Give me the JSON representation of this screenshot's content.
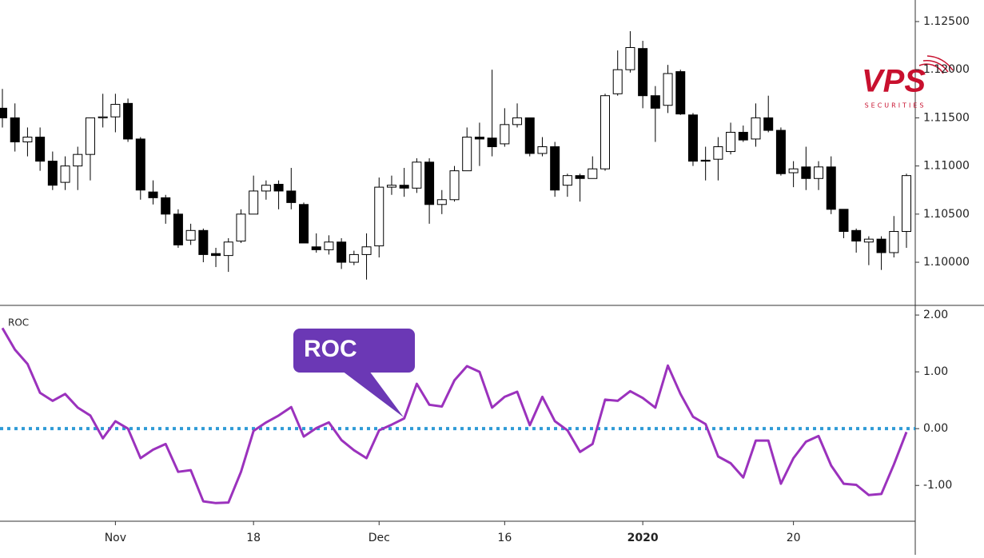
{
  "chart_data": [
    {
      "type": "candlestick",
      "up_color": "#ffffff",
      "down_color": "#000000",
      "wick_color": "#000000",
      "open": [
        1.116,
        1.115,
        1.1125,
        1.113,
        1.1105,
        1.1083,
        1.11,
        1.1112,
        1.115,
        1.1151,
        1.1165,
        1.1128,
        1.1073,
        1.1067,
        1.105,
        1.1023,
        1.1033,
        1.1009,
        1.1007,
        1.1022,
        1.105,
        1.1074,
        1.1081,
        1.1074,
        1.106,
        1.1016,
        1.1013,
        1.1021,
        1.1,
        1.1008,
        1.1017,
        1.1078,
        1.108,
        1.1077,
        1.1104,
        1.106,
        1.1065,
        1.1095,
        1.113,
        1.1129,
        1.1123,
        1.1143,
        1.115,
        1.1113,
        1.112,
        1.108,
        1.109,
        1.1087,
        1.1097,
        1.1175,
        1.12,
        1.1222,
        1.1173,
        1.1163,
        1.1198,
        1.1153,
        1.1106,
        1.1107,
        1.1115,
        1.1135,
        1.1128,
        1.115,
        1.1137,
        1.1093,
        1.1099,
        1.1087,
        1.1099,
        1.1055,
        1.1033,
        1.1021,
        1.1024,
        1.101,
        1.1032
      ],
      "high": [
        1.118,
        1.1165,
        1.114,
        1.114,
        1.1115,
        1.111,
        1.112,
        1.115,
        1.1175,
        1.1175,
        1.117,
        1.113,
        1.1085,
        1.107,
        1.1055,
        1.104,
        1.1035,
        1.1015,
        1.1025,
        1.1055,
        1.109,
        1.1085,
        1.1085,
        1.1098,
        1.1062,
        1.103,
        1.1028,
        1.1025,
        1.1012,
        1.103,
        1.1088,
        1.109,
        1.1098,
        1.1108,
        1.1108,
        1.1075,
        1.11,
        1.114,
        1.1145,
        1.12,
        1.116,
        1.1165,
        1.115,
        1.113,
        1.1125,
        1.1092,
        1.1092,
        1.111,
        1.1175,
        1.122,
        1.124,
        1.123,
        1.1183,
        1.1205,
        1.12,
        1.1155,
        1.112,
        1.113,
        1.1145,
        1.1142,
        1.1165,
        1.1173,
        1.114,
        1.1105,
        1.112,
        1.1105,
        1.111,
        1.1055,
        1.1035,
        1.1027,
        1.1027,
        1.1048,
        1.1092
      ],
      "low": [
        1.114,
        1.1115,
        1.111,
        1.1095,
        1.1075,
        1.1075,
        1.1075,
        1.1085,
        1.114,
        1.1135,
        1.1125,
        1.1065,
        1.106,
        1.104,
        1.1015,
        1.1018,
        1.1,
        1.0995,
        1.099,
        1.102,
        1.105,
        1.1065,
        1.1055,
        1.1055,
        1.102,
        1.101,
        1.1008,
        1.0993,
        1.0997,
        1.0982,
        1.1005,
        1.107,
        1.1068,
        1.1072,
        1.104,
        1.105,
        1.1063,
        1.1095,
        1.11,
        1.111,
        1.112,
        1.114,
        1.111,
        1.111,
        1.1068,
        1.1068,
        1.1063,
        1.1087,
        1.1095,
        1.1173,
        1.1197,
        1.116,
        1.1125,
        1.1155,
        1.1153,
        1.11,
        1.1085,
        1.1085,
        1.1112,
        1.1125,
        1.112,
        1.1135,
        1.109,
        1.1078,
        1.1075,
        1.1075,
        1.105,
        1.1025,
        1.101,
        1.0997,
        1.0992,
        1.1005,
        1.1015
      ],
      "close": [
        1.115,
        1.1125,
        1.113,
        1.1105,
        1.108,
        1.11,
        1.1112,
        1.115,
        1.1151,
        1.1164,
        1.1128,
        1.1075,
        1.1067,
        1.105,
        1.1018,
        1.1033,
        1.1008,
        1.1007,
        1.1021,
        1.105,
        1.1074,
        1.108,
        1.1074,
        1.1062,
        1.102,
        1.1013,
        1.1021,
        1.1,
        1.1008,
        1.1016,
        1.1078,
        1.108,
        1.1077,
        1.1104,
        1.106,
        1.1065,
        1.1095,
        1.113,
        1.1128,
        1.112,
        1.1143,
        1.115,
        1.1113,
        1.112,
        1.1075,
        1.109,
        1.1087,
        1.1097,
        1.1173,
        1.12,
        1.1223,
        1.1173,
        1.116,
        1.1196,
        1.1154,
        1.1105,
        1.1105,
        1.112,
        1.1135,
        1.1127,
        1.115,
        1.1137,
        1.1092,
        1.1097,
        1.1087,
        1.1099,
        1.1055,
        1.1032,
        1.1022,
        1.1024,
        1.101,
        1.1032,
        1.109
      ],
      "ylim": [
        1.09552,
        1.12724
      ],
      "yticks": [
        {
          "value": 1.1,
          "label": "1.10000"
        },
        {
          "value": 1.105,
          "label": "1.10500"
        },
        {
          "value": 1.11,
          "label": "1.11000"
        },
        {
          "value": 1.115,
          "label": "1.11500"
        },
        {
          "value": 1.12,
          "label": "1.12000"
        },
        {
          "value": 1.125,
          "label": "1.12500"
        }
      ],
      "logo": {
        "name": "VPS",
        "subtitle": "SECURITIES",
        "color": "#c8102e"
      }
    },
    {
      "type": "line",
      "title": "ROC",
      "categories": [
        null,
        null,
        null,
        null,
        null,
        null,
        null,
        null,
        null,
        "Nov",
        null,
        null,
        null,
        null,
        null,
        null,
        null,
        null,
        null,
        null,
        "18",
        null,
        null,
        null,
        null,
        null,
        null,
        null,
        null,
        null,
        "Dec",
        null,
        null,
        null,
        null,
        null,
        null,
        null,
        null,
        null,
        "16",
        null,
        null,
        null,
        null,
        null,
        null,
        null,
        null,
        null,
        null,
        "2020",
        null,
        null,
        null,
        null,
        null,
        null,
        null,
        null,
        null,
        null,
        null,
        "20",
        null,
        null,
        null,
        null,
        null,
        null,
        null,
        null,
        null
      ],
      "series": [
        {
          "name": "ROC",
          "color": "#9b32bd",
          "values": [
            1.77,
            1.39,
            1.14,
            0.63,
            0.49,
            0.61,
            0.37,
            0.23,
            -0.17,
            0.13,
            0,
            -0.52,
            -0.37,
            -0.27,
            -0.76,
            -0.73,
            -1.28,
            -1.31,
            -1.3,
            -0.76,
            -0.04,
            0.11,
            0.23,
            0.38,
            -0.14,
            0.01,
            0.11,
            -0.2,
            -0.38,
            -0.52,
            -0.03,
            0.07,
            0.18,
            0.79,
            0.42,
            0.39,
            0.85,
            1.1,
            1.0,
            0.37,
            0.56,
            0.65,
            0.06,
            0.56,
            0.13,
            -0.03,
            -0.41,
            -0.27,
            0.51,
            0.49,
            0.66,
            0.54,
            0.37,
            1.11,
            0.61,
            0.21,
            0.08,
            -0.49,
            -0.61,
            -0.86,
            -0.21,
            -0.21,
            -0.97,
            -0.52,
            -0.23,
            -0.13,
            -0.65,
            -0.97,
            -0.99,
            -1.17,
            -1.15,
            -0.63,
            -0.06
          ]
        }
      ],
      "reference_line": {
        "value": 0,
        "color": "#2f9bd6"
      },
      "annotation": {
        "text": "ROC",
        "color": "#6b38b5"
      },
      "ylim": [
        -1.63,
        2.17
      ],
      "yticks": [
        {
          "value": -1,
          "label": "-1.00"
        },
        {
          "value": 0,
          "label": "0.00"
        },
        {
          "value": 1,
          "label": "1.00"
        },
        {
          "value": 2,
          "label": "2.00"
        }
      ]
    }
  ]
}
